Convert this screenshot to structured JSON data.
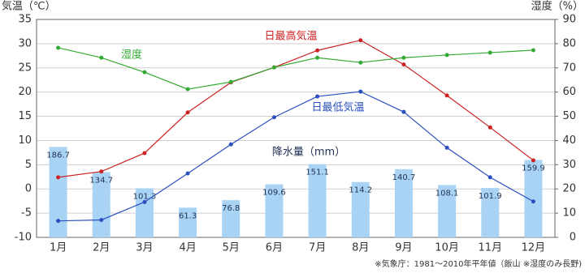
{
  "chart_data": {
    "type": "climate",
    "y_label": "気温（℃）",
    "y2_label": "湿度（%）",
    "note": "※気象庁：1981～2010年平年値（飯山 ※湿度のみ長野)",
    "categories": [
      "1月",
      "2月",
      "3月",
      "4月",
      "5月",
      "6月",
      "7月",
      "8月",
      "9月",
      "10月",
      "11月",
      "12月"
    ],
    "ylim": [
      -10,
      35
    ],
    "yticks": [
      -10,
      -5,
      0,
      5,
      10,
      15,
      20,
      25,
      30,
      35
    ],
    "y2lim": [
      0,
      90
    ],
    "y2ticks": [
      0,
      10,
      20,
      30,
      40,
      50,
      60,
      70,
      80,
      90
    ],
    "y3lim": [
      0,
      450
    ],
    "grid": true,
    "series": [
      {
        "name": "降水量（mm）",
        "type": "bar",
        "axis": "y3",
        "color": "#a9d3f4",
        "values": [
          186.7,
          134.7,
          101.3,
          61.3,
          76.8,
          109.6,
          151.1,
          114.2,
          140.7,
          108.1,
          101.9,
          159.9
        ]
      },
      {
        "name": "日最高気温",
        "type": "line",
        "color": "#cc2222",
        "values": [
          2.4,
          3.6,
          7.4,
          15.8,
          22.0,
          25.1,
          28.6,
          30.7,
          25.7,
          19.3,
          12.7,
          5.9
        ]
      },
      {
        "name": "日最低気温",
        "type": "line",
        "color": "#2a4fbf",
        "values": [
          -6.6,
          -6.4,
          -2.7,
          3.2,
          9.2,
          14.8,
          19.1,
          20.1,
          15.9,
          8.5,
          2.4,
          -2.6
        ]
      },
      {
        "name": "湿度",
        "type": "line",
        "axis": "y2",
        "color": "#33aa33",
        "values": [
          78.3,
          74.2,
          68.2,
          61.2,
          64.2,
          70.2,
          74.2,
          72.2,
          74.2,
          75.3,
          76.3,
          77.3
        ]
      }
    ]
  }
}
